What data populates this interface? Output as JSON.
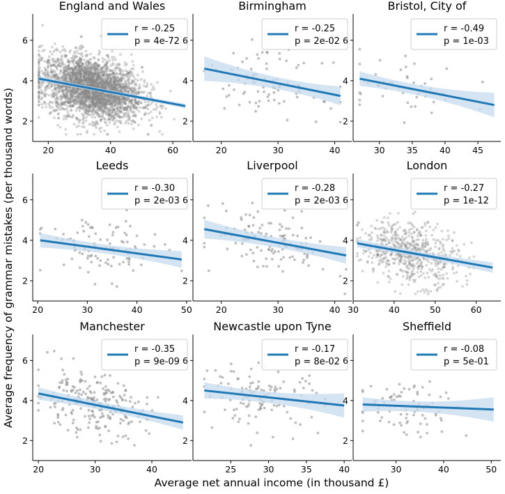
{
  "figure": {
    "xlabel": "Average net annual income (in thousand £)",
    "ylabel": "Average frequency of grammar mistakes (per thousand words)"
  },
  "colors": {
    "line": "#1f77b4",
    "band": "#c6dbef",
    "points": "#888888"
  },
  "chart_data": [
    {
      "type": "scatter",
      "title": "England and Wales",
      "xlim": [
        15,
        66
      ],
      "ylim": [
        1.0,
        7.3
      ],
      "xticks": [
        20,
        40,
        60
      ],
      "yticks": [
        2,
        4,
        6
      ],
      "n_points": 3000,
      "x_center": 34,
      "x_spread": 8,
      "fit": {
        "x0": 17,
        "y0": 4.1,
        "x1": 64,
        "y1": 2.75,
        "band_lo": 0.06,
        "band_hi": 0.06
      },
      "stats": {
        "r": "r = -0.25",
        "p": "p = 4e-72"
      }
    },
    {
      "type": "scatter",
      "title": "Birmingham",
      "xlim": [
        15,
        43
      ],
      "ylim": [
        1.0,
        7.3
      ],
      "xticks": [
        20,
        30,
        40
      ],
      "yticks": [
        2,
        4,
        6
      ],
      "n_points": 85,
      "x_center": 28,
      "x_spread": 5,
      "fit": {
        "x0": 17,
        "y0": 4.6,
        "x1": 41,
        "y1": 3.25,
        "band_lo": 0.55,
        "band_hi": 0.4
      },
      "stats": {
        "r": "r = -0.25",
        "p": "p = 2e-02"
      }
    },
    {
      "type": "scatter",
      "title": "Bristol, City of",
      "xlim": [
        26,
        48.5
      ],
      "ylim": [
        1.0,
        7.3
      ],
      "xticks": [
        30,
        35,
        40,
        45
      ],
      "yticks": [
        2,
        4,
        6
      ],
      "n_points": 45,
      "x_center": 34,
      "x_spread": 5,
      "fit": {
        "x0": 27,
        "y0": 4.1,
        "x1": 47.5,
        "y1": 2.8,
        "band_lo": 0.3,
        "band_hi": 0.55
      },
      "stats": {
        "r": "r = -0.49",
        "p": "p = 1e-03"
      }
    },
    {
      "type": "scatter",
      "title": "Leeds",
      "xlim": [
        19,
        51
      ],
      "ylim": [
        1.0,
        7.3
      ],
      "xticks": [
        20,
        30,
        40,
        50
      ],
      "yticks": [
        2,
        4,
        6
      ],
      "n_points": 105,
      "x_center": 33,
      "x_spread": 6,
      "fit": {
        "x0": 20.5,
        "y0": 4.0,
        "x1": 49,
        "y1": 3.05,
        "band_lo": 0.3,
        "band_hi": 0.35
      },
      "stats": {
        "r": "r = -0.30",
        "p": "p = 2e-03"
      }
    },
    {
      "type": "scatter",
      "title": "Liverpool",
      "xlim": [
        15,
        43
      ],
      "ylim": [
        1.0,
        7.3
      ],
      "xticks": [
        20,
        30,
        40
      ],
      "yticks": [
        2,
        4,
        6
      ],
      "n_points": 120,
      "x_center": 29,
      "x_spread": 5,
      "fit": {
        "x0": 17,
        "y0": 4.55,
        "x1": 42,
        "y1": 3.25,
        "band_lo": 0.4,
        "band_hi": 0.35
      },
      "stats": {
        "r": "r = -0.28",
        "p": "p = 2e-03"
      }
    },
    {
      "type": "scatter",
      "title": "London",
      "xlim": [
        30,
        66
      ],
      "ylim": [
        1.0,
        7.3
      ],
      "xticks": [
        30,
        40,
        50,
        60
      ],
      "yticks": [
        2,
        4,
        6
      ],
      "n_points": 600,
      "x_center": 44,
      "x_spread": 6,
      "fit": {
        "x0": 31,
        "y0": 3.85,
        "x1": 64,
        "y1": 2.65,
        "band_lo": 0.15,
        "band_hi": 0.2
      },
      "stats": {
        "r": "r = -0.27",
        "p": "p = 1e-12"
      }
    },
    {
      "type": "scatter",
      "title": "Manchester",
      "xlim": [
        19,
        47
      ],
      "ylim": [
        1.0,
        7.3
      ],
      "xticks": [
        20,
        30,
        40
      ],
      "yticks": [
        2,
        4,
        6
      ],
      "n_points": 230,
      "x_center": 29,
      "x_spread": 5,
      "fit": {
        "x0": 20,
        "y0": 4.35,
        "x1": 45.5,
        "y1": 2.9,
        "band_lo": 0.25,
        "band_hi": 0.3
      },
      "stats": {
        "r": "r = -0.35",
        "p": "p = 9e-09"
      }
    },
    {
      "type": "scatter",
      "title": "Newcastle upon Tyne",
      "xlim": [
        20,
        41
      ],
      "ylim": [
        1.0,
        7.3
      ],
      "xticks": [
        25,
        30,
        35,
        40
      ],
      "yticks": [
        2,
        4,
        6
      ],
      "n_points": 120,
      "x_center": 29,
      "x_spread": 4,
      "fit": {
        "x0": 21.5,
        "y0": 4.5,
        "x1": 40,
        "y1": 3.75,
        "band_lo": 0.35,
        "band_hi": 0.55
      },
      "stats": {
        "r": "r = -0.17",
        "p": "p = 8e-02"
      }
    },
    {
      "type": "scatter",
      "title": "Sheffield",
      "xlim": [
        21,
        52
      ],
      "ylim": [
        1.0,
        7.3
      ],
      "xticks": [
        30,
        40,
        50
      ],
      "yticks": [
        2,
        4,
        6
      ],
      "n_points": 80,
      "x_center": 33,
      "x_spread": 6,
      "fit": {
        "x0": 23,
        "y0": 3.8,
        "x1": 50.5,
        "y1": 3.55,
        "band_lo": 0.3,
        "band_hi": 0.55
      },
      "stats": {
        "r": "r = -0.08",
        "p": "p = 5e-01"
      }
    }
  ]
}
